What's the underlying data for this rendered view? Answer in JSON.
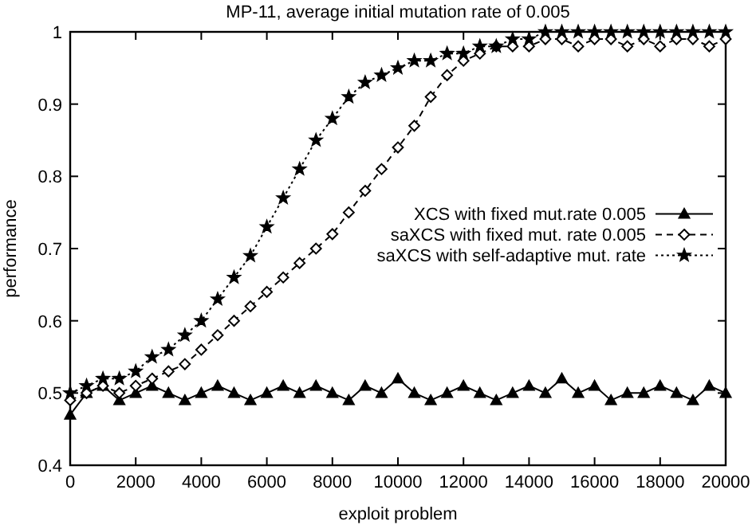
{
  "chart_data": {
    "type": "line",
    "title": "MP-11, average initial mutation rate of 0.005",
    "xlabel": "exploit problem",
    "ylabel": "performance",
    "xlim": [
      0,
      20000
    ],
    "xticks": [
      0,
      2000,
      4000,
      6000,
      8000,
      10000,
      12000,
      14000,
      16000,
      18000,
      20000
    ],
    "ylim": [
      0.4,
      1
    ],
    "yticks": [
      0.4,
      0.5,
      0.6,
      0.7,
      0.8,
      0.9,
      1
    ],
    "grid": false,
    "legend": "right",
    "x": [
      0,
      500,
      1000,
      1500,
      2000,
      2500,
      3000,
      3500,
      4000,
      4500,
      5000,
      5500,
      6000,
      6500,
      7000,
      7500,
      8000,
      8500,
      9000,
      9500,
      10000,
      10500,
      11000,
      11500,
      12000,
      12500,
      13000,
      13500,
      14000,
      14500,
      15000,
      15500,
      16000,
      16500,
      17000,
      17500,
      18000,
      18500,
      19000,
      19500,
      20000
    ],
    "series": [
      {
        "name": "XCS with fixed mut.rate 0.005",
        "color": "#000000",
        "marker": "triangle",
        "line_style": "solid",
        "values": [
          0.47,
          0.5,
          0.51,
          0.49,
          0.5,
          0.51,
          0.5,
          0.49,
          0.5,
          0.51,
          0.5,
          0.49,
          0.5,
          0.51,
          0.5,
          0.51,
          0.5,
          0.49,
          0.51,
          0.5,
          0.52,
          0.5,
          0.49,
          0.5,
          0.51,
          0.5,
          0.49,
          0.5,
          0.51,
          0.5,
          0.52,
          0.5,
          0.51,
          0.49,
          0.5,
          0.5,
          0.51,
          0.5,
          0.49,
          0.51,
          0.5
        ]
      },
      {
        "name": "saXCS with fixed mut. rate 0.005",
        "color": "#000000",
        "marker": "diamond",
        "line_style": "dashed",
        "values": [
          0.49,
          0.5,
          0.51,
          0.5,
          0.51,
          0.52,
          0.53,
          0.54,
          0.56,
          0.58,
          0.6,
          0.62,
          0.64,
          0.66,
          0.68,
          0.7,
          0.72,
          0.75,
          0.78,
          0.81,
          0.84,
          0.87,
          0.91,
          0.94,
          0.96,
          0.97,
          0.98,
          0.98,
          0.98,
          0.99,
          0.99,
          0.98,
          0.99,
          0.99,
          0.98,
          0.99,
          0.98,
          0.99,
          0.99,
          0.98,
          0.99
        ]
      },
      {
        "name": "saXCS with self-adaptive mut. rate",
        "color": "#000000",
        "marker": "star",
        "line_style": "dotted",
        "values": [
          0.5,
          0.51,
          0.52,
          0.52,
          0.53,
          0.55,
          0.56,
          0.58,
          0.6,
          0.63,
          0.66,
          0.69,
          0.73,
          0.77,
          0.81,
          0.85,
          0.88,
          0.91,
          0.93,
          0.94,
          0.95,
          0.96,
          0.96,
          0.97,
          0.97,
          0.98,
          0.98,
          0.99,
          0.99,
          1,
          1,
          1,
          1,
          1,
          1,
          1,
          1,
          1,
          1,
          1,
          1
        ]
      }
    ]
  }
}
